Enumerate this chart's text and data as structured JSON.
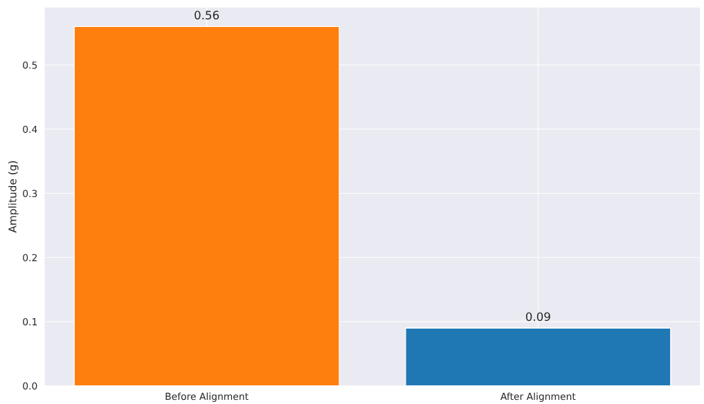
{
  "chart_data": {
    "type": "bar",
    "ylabel": "Amplitude (g)",
    "categories": [
      "Before Alignment",
      "After Alignment"
    ],
    "values": [
      0.56,
      0.09
    ],
    "colors": [
      "#ff7f0e",
      "#1f77b4"
    ],
    "ylim": [
      0,
      0.59
    ],
    "yticks": [
      {
        "value": 0,
        "label": "0.0"
      },
      0.1,
      0.2,
      0.3,
      0.4,
      0.5
    ],
    "grid": true,
    "data_labels": true
  }
}
